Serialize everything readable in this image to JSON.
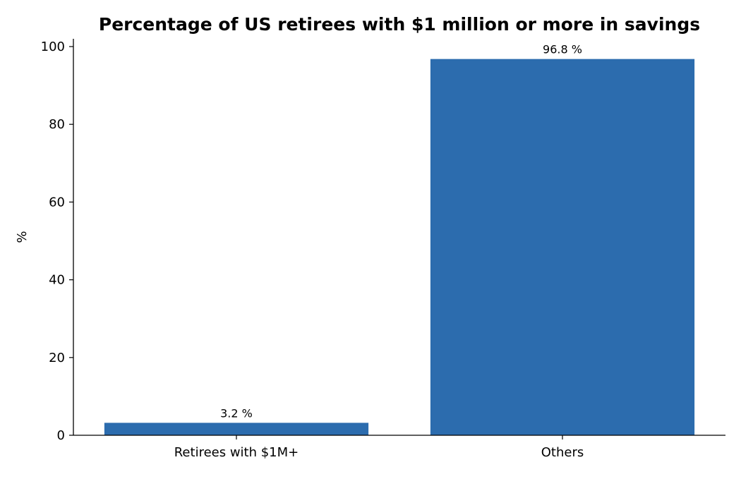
{
  "chart_data": {
    "type": "bar",
    "title": "Percentage of US retirees with $1 million or more in savings",
    "xlabel": "",
    "ylabel": "%",
    "categories": [
      "Retirees with $1M+",
      "Others"
    ],
    "values": [
      3.2,
      96.8
    ],
    "value_labels": [
      "3.2 %",
      "96.8 %"
    ],
    "ylim": [
      0,
      102
    ],
    "yticks": [
      0,
      20,
      40,
      60,
      80,
      100
    ],
    "grid": false,
    "legend": "none",
    "bar_color": "#2c6cae"
  }
}
